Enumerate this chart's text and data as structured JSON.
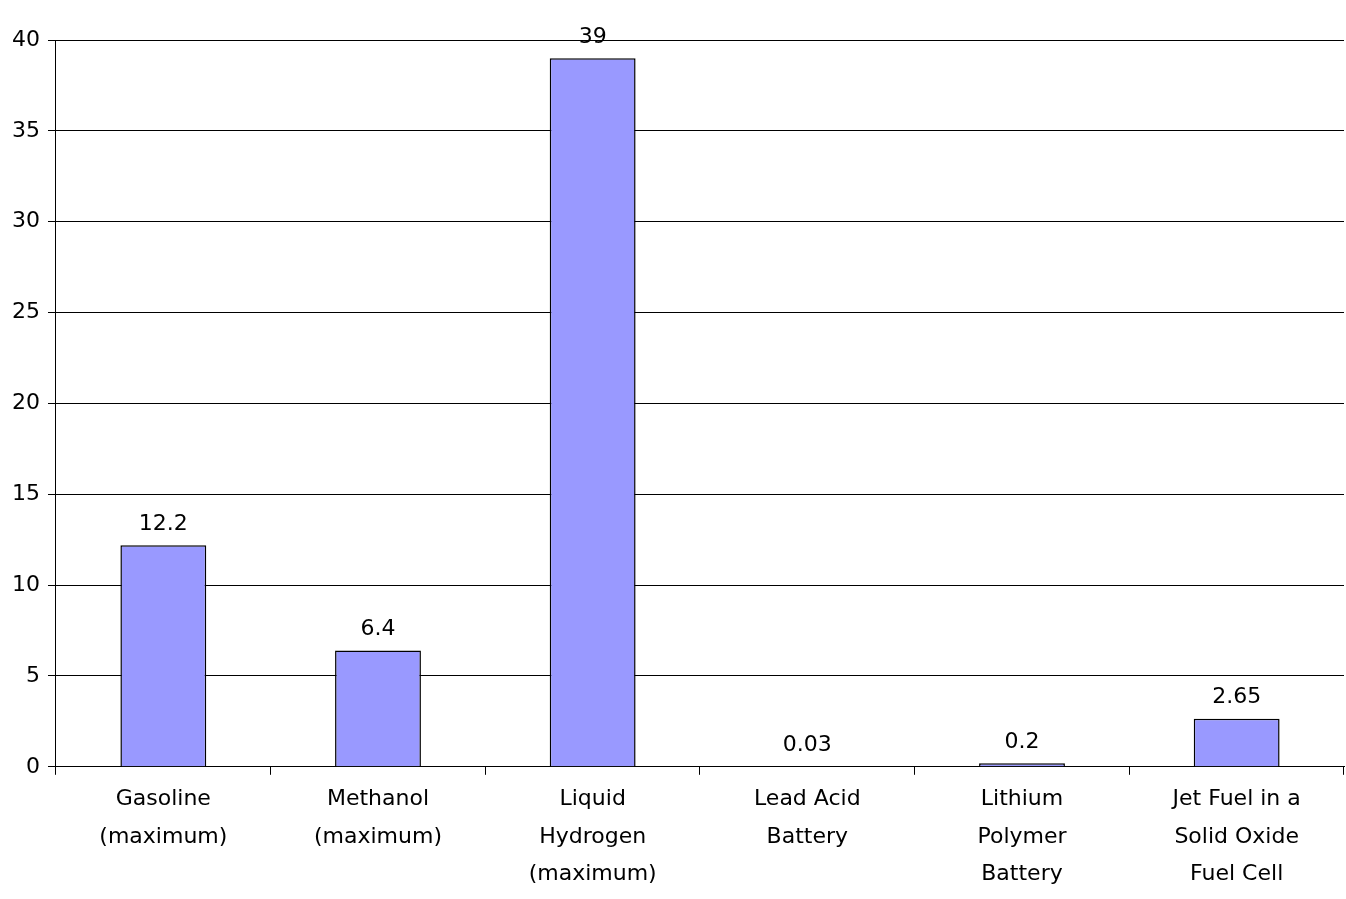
{
  "chart_data": {
    "type": "bar",
    "categories": [
      "Gasoline (maximum)",
      "Methanol (maximum)",
      "Liquid Hydrogen (maximum)",
      "Lead Acid Battery",
      "Lithium Polymer Battery",
      "Jet Fuel in a Solid Oxide Fuel Cell"
    ],
    "values": [
      12.2,
      6.4,
      39,
      0.03,
      0.2,
      2.65
    ],
    "color": "#9999ff",
    "ylim": [
      0,
      40
    ],
    "yticks": [
      0,
      5,
      10,
      15,
      20,
      25,
      30,
      35,
      40
    ],
    "grid": "y",
    "legend": false,
    "data_labels": true
  }
}
